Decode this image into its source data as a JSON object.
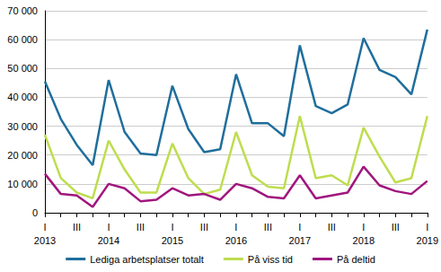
{
  "chart_data": {
    "type": "line",
    "categories": [
      "I\n2013",
      null,
      "III",
      null,
      "I\n2014",
      null,
      "III",
      null,
      "I\n2015",
      null,
      "III",
      null,
      "I\n2016",
      null,
      "III",
      null,
      "I\n2017",
      null,
      "III",
      null,
      "I\n2018",
      null,
      "III",
      null,
      "I\n2019"
    ],
    "series": [
      {
        "name": "Lediga arbetsplatser totalt",
        "color": "#1f6e9c",
        "values": [
          45500,
          32500,
          23500,
          16500,
          46000,
          28000,
          20500,
          20000,
          44000,
          29000,
          21000,
          22000,
          48000,
          31000,
          31000,
          26500,
          58000,
          37000,
          34500,
          37500,
          60500,
          49500,
          47000,
          41000,
          63500
        ]
      },
      {
        "name": "På viss tid",
        "color": "#bedd4f",
        "values": [
          27000,
          12000,
          7000,
          5000,
          25000,
          15000,
          7000,
          7000,
          24000,
          12000,
          6500,
          8000,
          28000,
          13000,
          9000,
          8500,
          33500,
          12000,
          13000,
          9500,
          29500,
          19500,
          10500,
          12000,
          33500
        ]
      },
      {
        "name": "På deltid",
        "color": "#a0167e",
        "values": [
          13500,
          6500,
          6000,
          2000,
          10000,
          8500,
          4000,
          4500,
          8500,
          6000,
          6500,
          4500,
          10000,
          8500,
          5500,
          5000,
          13000,
          5000,
          6000,
          7000,
          16000,
          9500,
          7500,
          6500,
          11000
        ]
      }
    ],
    "ylim": [
      0,
      70000
    ],
    "yticks": [
      0,
      {
        "value": 10000,
        "label": "10 000"
      },
      {
        "value": 20000,
        "label": "20 000"
      },
      {
        "value": 30000,
        "label": "30 000"
      },
      {
        "value": 40000,
        "label": "40 000"
      },
      {
        "value": 50000,
        "label": "50 000"
      },
      {
        "value": 60000,
        "label": "60 000"
      },
      {
        "value": 70000,
        "label": "70 000"
      }
    ],
    "grid": true,
    "legend": "bottom"
  }
}
